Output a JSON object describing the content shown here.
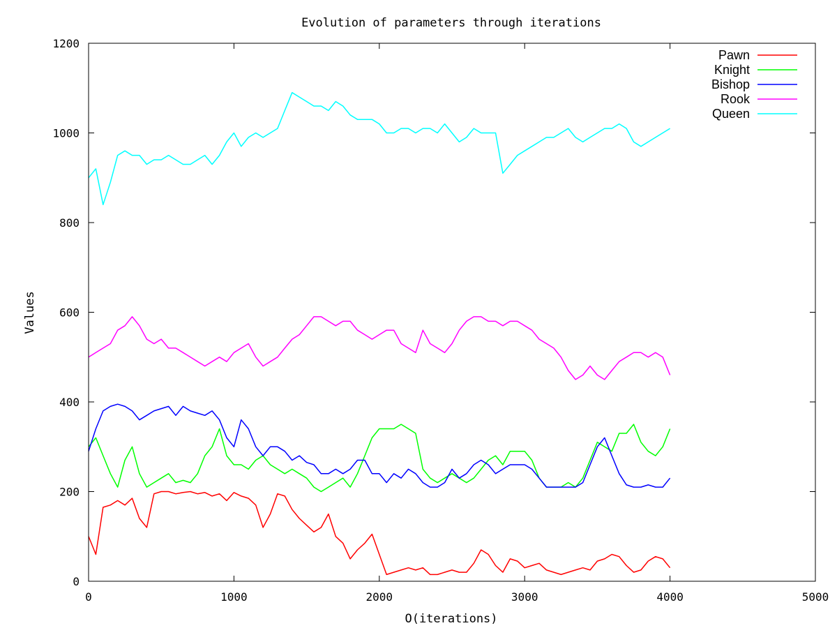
{
  "chart_data": {
    "type": "line",
    "title": "Evolution of parameters through iterations",
    "xlabel": "O(iterations)",
    "ylabel": "Values",
    "xlim": [
      0,
      5000
    ],
    "ylim": [
      0,
      1200
    ],
    "x_ticks": [
      0,
      1000,
      2000,
      3000,
      4000,
      5000
    ],
    "y_ticks": [
      0,
      200,
      400,
      600,
      800,
      1000,
      1200
    ],
    "grid": false,
    "legend_position": "top-right",
    "x": [
      0,
      50,
      100,
      150,
      200,
      250,
      300,
      350,
      400,
      450,
      500,
      550,
      600,
      650,
      700,
      750,
      800,
      850,
      900,
      950,
      1000,
      1050,
      1100,
      1150,
      1200,
      1250,
      1300,
      1350,
      1400,
      1450,
      1500,
      1550,
      1600,
      1650,
      1700,
      1750,
      1800,
      1850,
      1900,
      1950,
      2000,
      2050,
      2100,
      2150,
      2200,
      2250,
      2300,
      2350,
      2400,
      2450,
      2500,
      2550,
      2600,
      2650,
      2700,
      2750,
      2800,
      2850,
      2900,
      2950,
      3000,
      3050,
      3100,
      3150,
      3200,
      3250,
      3300,
      3350,
      3400,
      3450,
      3500,
      3550,
      3600,
      3650,
      3700,
      3750,
      3800,
      3850,
      3900,
      3950,
      4000
    ],
    "series": [
      {
        "name": "Pawn",
        "color": "#ff0000",
        "values": [
          100,
          60,
          165,
          170,
          180,
          170,
          185,
          140,
          120,
          195,
          200,
          200,
          195,
          198,
          200,
          195,
          198,
          190,
          195,
          180,
          198,
          190,
          185,
          170,
          120,
          150,
          195,
          190,
          160,
          140,
          125,
          110,
          120,
          150,
          100,
          85,
          50,
          70,
          85,
          105,
          60,
          15,
          20,
          25,
          30,
          25,
          30,
          15,
          15,
          20,
          25,
          20,
          20,
          40,
          70,
          60,
          35,
          20,
          50,
          45,
          30,
          35,
          40,
          25,
          20,
          15,
          20,
          25,
          30,
          25,
          45,
          50,
          60,
          55,
          35,
          20,
          25,
          45,
          55,
          50,
          30
        ]
      },
      {
        "name": "Knight",
        "color": "#00ff00",
        "values": [
          300,
          320,
          280,
          240,
          210,
          270,
          300,
          240,
          210,
          220,
          230,
          240,
          220,
          225,
          220,
          240,
          280,
          300,
          340,
          280,
          260,
          260,
          250,
          270,
          280,
          260,
          250,
          240,
          250,
          240,
          230,
          210,
          200,
          210,
          220,
          230,
          210,
          240,
          280,
          320,
          340,
          340,
          340,
          350,
          340,
          330,
          250,
          230,
          220,
          230,
          240,
          230,
          220,
          230,
          250,
          270,
          280,
          260,
          290,
          290,
          290,
          270,
          230,
          210,
          210,
          210,
          220,
          210,
          230,
          270,
          310,
          300,
          290,
          330,
          330,
          350,
          310,
          290,
          280,
          300,
          340
        ]
      },
      {
        "name": "Bishop",
        "color": "#0000ff",
        "values": [
          290,
          340,
          380,
          390,
          395,
          390,
          380,
          360,
          370,
          380,
          385,
          390,
          370,
          390,
          380,
          375,
          370,
          380,
          360,
          320,
          300,
          360,
          340,
          300,
          280,
          300,
          300,
          290,
          270,
          280,
          265,
          260,
          240,
          240,
          250,
          240,
          250,
          270,
          270,
          240,
          240,
          220,
          240,
          230,
          250,
          240,
          220,
          210,
          210,
          220,
          250,
          230,
          240,
          260,
          270,
          260,
          240,
          250,
          260,
          260,
          260,
          250,
          230,
          210,
          210,
          210,
          210,
          210,
          220,
          260,
          300,
          320,
          280,
          240,
          215,
          210,
          210,
          215,
          210,
          210,
          230
        ]
      },
      {
        "name": "Rook",
        "color": "#ff00ff",
        "values": [
          500,
          510,
          520,
          530,
          560,
          570,
          590,
          570,
          540,
          530,
          540,
          520,
          520,
          510,
          500,
          490,
          480,
          490,
          500,
          490,
          510,
          520,
          530,
          500,
          480,
          490,
          500,
          520,
          540,
          550,
          570,
          590,
          590,
          580,
          570,
          580,
          580,
          560,
          550,
          540,
          550,
          560,
          560,
          530,
          520,
          510,
          560,
          530,
          520,
          510,
          530,
          560,
          580,
          590,
          590,
          580,
          580,
          570,
          580,
          580,
          570,
          560,
          540,
          530,
          520,
          500,
          470,
          450,
          460,
          480,
          460,
          450,
          470,
          490,
          500,
          510,
          510,
          500,
          510,
          500,
          460
        ]
      },
      {
        "name": "Queen",
        "color": "#00ffff",
        "values": [
          900,
          920,
          840,
          890,
          950,
          960,
          950,
          950,
          930,
          940,
          940,
          950,
          940,
          930,
          930,
          940,
          950,
          930,
          950,
          980,
          1000,
          970,
          990,
          1000,
          990,
          1000,
          1010,
          1050,
          1090,
          1080,
          1070,
          1060,
          1060,
          1050,
          1070,
          1060,
          1040,
          1030,
          1030,
          1030,
          1020,
          1000,
          1000,
          1010,
          1010,
          1000,
          1010,
          1010,
          1000,
          1020,
          1000,
          980,
          990,
          1010,
          1000,
          1000,
          1000,
          910,
          930,
          950,
          960,
          970,
          980,
          990,
          990,
          1000,
          1010,
          990,
          980,
          990,
          1000,
          1010,
          1010,
          1020,
          1010,
          980,
          970,
          980,
          990,
          1000,
          1010
        ]
      }
    ]
  }
}
